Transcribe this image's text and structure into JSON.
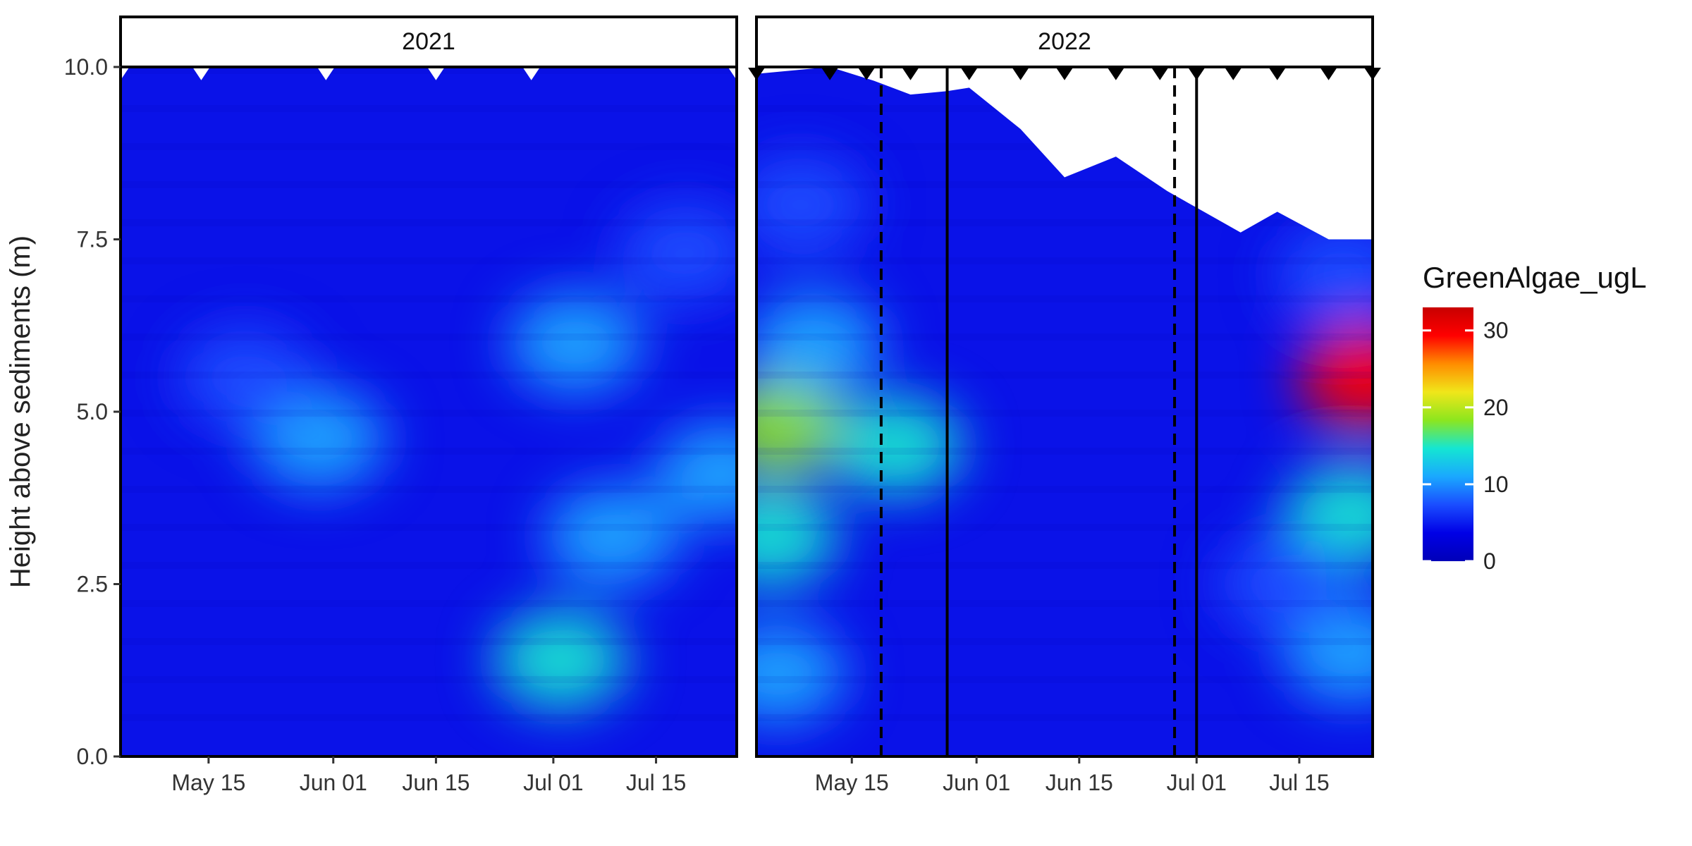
{
  "chart_data": {
    "type": "heatmap",
    "ylabel": "Height above sediments (m)",
    "ylim": [
      0,
      10
    ],
    "y_ticks": [
      "0.0",
      "2.5",
      "5.0",
      "7.5",
      "10.0"
    ],
    "legend": {
      "title": "GreenAlgae_ugL",
      "ticks": [
        "0",
        "10",
        "20",
        "30"
      ],
      "range": [
        0,
        33
      ],
      "placement": "right"
    },
    "colors": {
      "scale": [
        "#0000b8",
        "#0000e6",
        "#1a4dff",
        "#1aa8ff",
        "#14e6d2",
        "#8ce61e",
        "#f0e61a",
        "#ff8c00",
        "#ff0000",
        "#c80000"
      ],
      "frame": "#000000",
      "text": "#222222"
    },
    "panels": [
      {
        "label": "2021",
        "x_tick_labels": [
          "May 15",
          "Jun 01",
          "Jun 15",
          "Jul 01",
          "Jul 15"
        ],
        "x_tick_days": [
          135,
          152,
          166,
          182,
          196
        ],
        "xlim_days": [
          123,
          207
        ],
        "surface": [
          [
            123,
            10
          ],
          [
            207,
            10
          ]
        ],
        "sampling_days": [
          123,
          134,
          151,
          166,
          179,
          207
        ],
        "sampling_marker_fill": "#ffffff",
        "dashed_lines": [],
        "solid_lines": [],
        "blobs": [
          {
            "day": 150,
            "height": 4.6,
            "value": 11
          },
          {
            "day": 185,
            "height": 6.0,
            "value": 11
          },
          {
            "day": 183,
            "height": 1.4,
            "value": 14
          },
          {
            "day": 190,
            "height": 3.2,
            "value": 11
          },
          {
            "day": 205,
            "height": 4.1,
            "value": 12
          },
          {
            "day": 140,
            "height": 5.5,
            "value": 8
          },
          {
            "day": 200,
            "height": 7.3,
            "value": 8
          }
        ]
      },
      {
        "label": "2022",
        "x_tick_labels": [
          "May 15",
          "Jun 01",
          "Jun 15",
          "Jul 01",
          "Jul 15"
        ],
        "x_tick_days": [
          135,
          152,
          166,
          182,
          196
        ],
        "xlim_days": [
          122,
          206
        ],
        "surface": [
          [
            122,
            9.9
          ],
          [
            132,
            10.0
          ],
          [
            138,
            9.8
          ],
          [
            143,
            9.6
          ],
          [
            148,
            9.65
          ],
          [
            151,
            9.7
          ],
          [
            158,
            9.1
          ],
          [
            164,
            8.4
          ],
          [
            171,
            8.7
          ],
          [
            178,
            8.2
          ],
          [
            183,
            7.9
          ],
          [
            188,
            7.6
          ],
          [
            193,
            7.9
          ],
          [
            200,
            7.5
          ],
          [
            206,
            7.5
          ]
        ],
        "sampling_days": [
          122,
          132,
          137,
          143,
          151,
          158,
          164,
          171,
          177,
          182,
          187,
          193,
          200,
          206
        ],
        "sampling_marker_fill": "#000000",
        "dashed_lines": [
          139,
          179
        ],
        "solid_lines": [
          148,
          182
        ],
        "blobs": [
          {
            "day": 125,
            "height": 4.8,
            "value": 19
          },
          {
            "day": 124,
            "height": 3.2,
            "value": 15
          },
          {
            "day": 125,
            "height": 1.2,
            "value": 12
          },
          {
            "day": 130,
            "height": 6.0,
            "value": 12
          },
          {
            "day": 128,
            "height": 8.0,
            "value": 9
          },
          {
            "day": 141,
            "height": 4.5,
            "value": 13
          },
          {
            "day": 205,
            "height": 5.5,
            "value": 31
          },
          {
            "day": 203,
            "height": 3.5,
            "value": 15
          },
          {
            "day": 203,
            "height": 1.5,
            "value": 10
          },
          {
            "day": 202,
            "height": 7.0,
            "value": 9
          },
          {
            "day": 194,
            "height": 2.5,
            "value": 8
          }
        ]
      }
    ]
  }
}
